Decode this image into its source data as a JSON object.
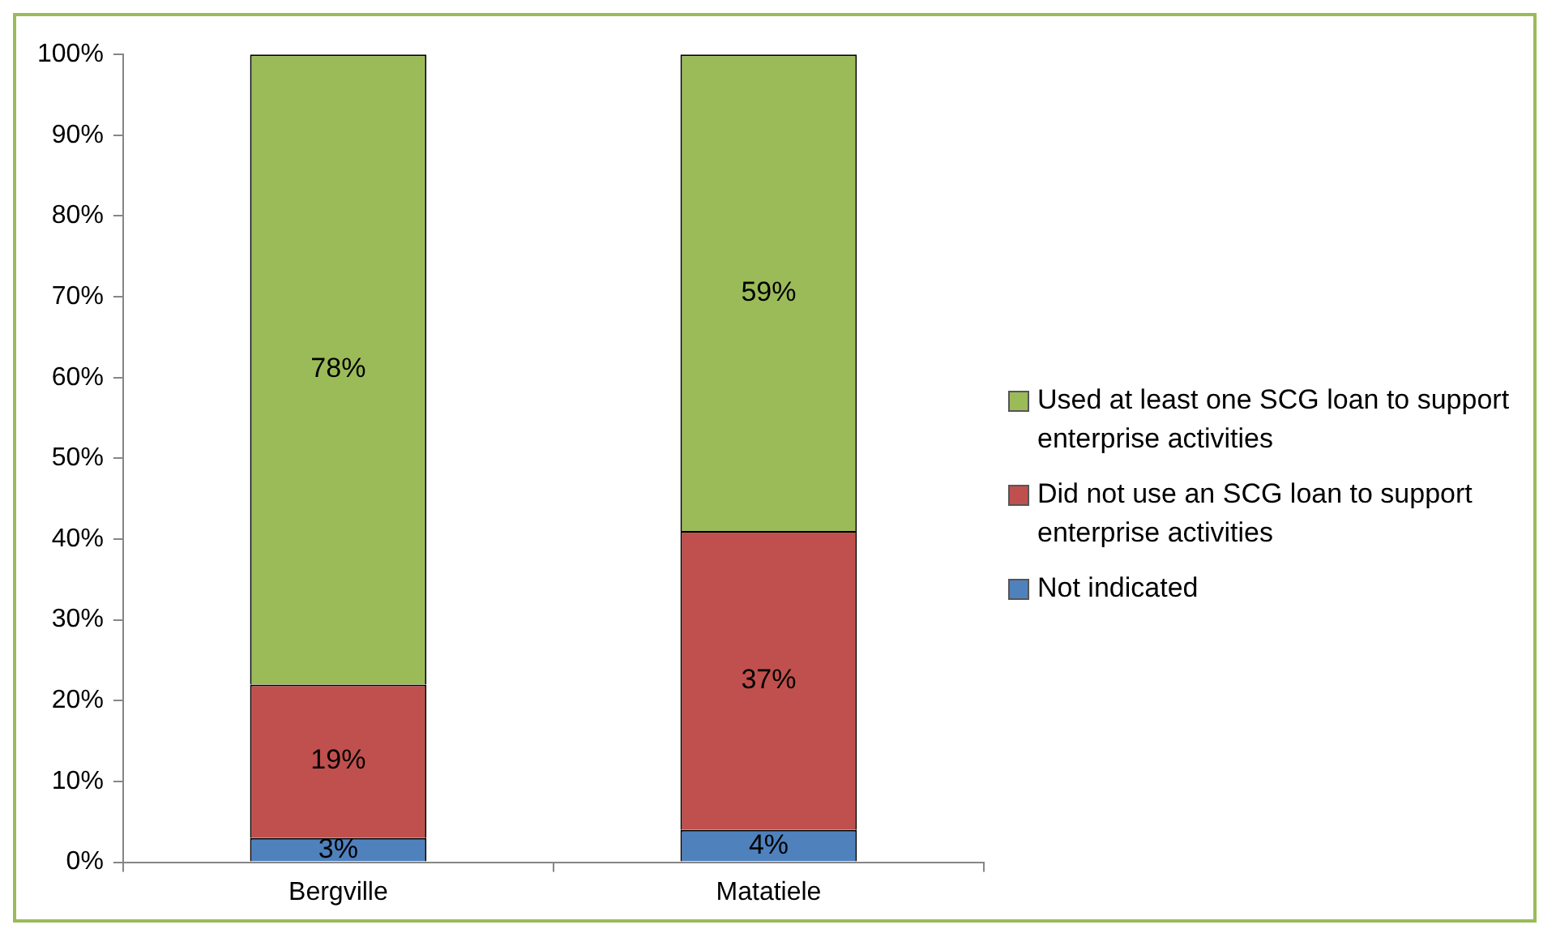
{
  "chart_data": {
    "type": "bar",
    "stacked": true,
    "categories": [
      "Bergville",
      "Matatiele"
    ],
    "series": [
      {
        "name": "Not indicated",
        "color": "#4f81bd",
        "values": [
          3,
          4
        ],
        "value_labels": [
          "3%",
          "4%"
        ]
      },
      {
        "name": "Did not use an SCG loan to support enterprise activities",
        "color": "#c0504d",
        "values": [
          19,
          37
        ],
        "value_labels": [
          "19%",
          "37%"
        ]
      },
      {
        "name": "Used at least one SCG loan to support enterprise activities",
        "color": "#9bbb59",
        "values": [
          78,
          59
        ],
        "value_labels": [
          "78%",
          "59%"
        ]
      }
    ],
    "ylim": [
      0,
      100
    ],
    "yticks": [
      {
        "value": 0,
        "label": "0%"
      },
      {
        "value": 10,
        "label": "10%"
      },
      {
        "value": 20,
        "label": "20%"
      },
      {
        "value": 30,
        "label": "30%"
      },
      {
        "value": 40,
        "label": "40%"
      },
      {
        "value": 50,
        "label": "50%"
      },
      {
        "value": 60,
        "label": "60%"
      },
      {
        "value": 70,
        "label": "70%"
      },
      {
        "value": 80,
        "label": "80%"
      },
      {
        "value": 90,
        "label": "90%"
      },
      {
        "value": 100,
        "label": "100%"
      }
    ],
    "grid": false,
    "legend": "right"
  }
}
